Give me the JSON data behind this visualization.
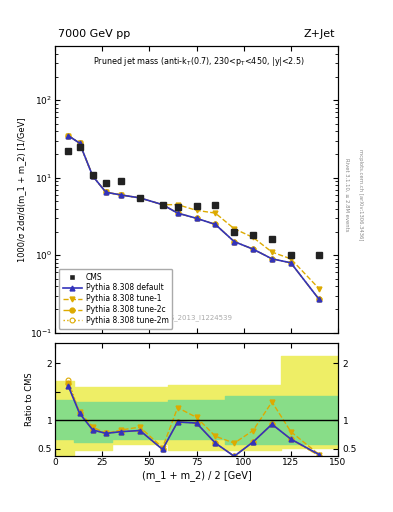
{
  "title_top": "7000 GeV pp",
  "title_right": "Z+Jet",
  "watermark": "CMS_2013_I1224539",
  "rivet_text": "Rivet 3.1.10, ≥ 2.8M events",
  "mcplots_text": "mcplots.cern.ch [arXiv:1306.3436]",
  "ylabel_main": "1000/σ 2dσ/d(m_1 + m_2) [1/GeV]",
  "ylabel_ratio": "Ratio to CMS",
  "xlabel": "(m_1 + m_2) / 2 [GeV]",
  "xlim": [
    0,
    150
  ],
  "ylim_main": [
    0.1,
    500
  ],
  "ylim_ratio": [
    0.38,
    2.35
  ],
  "cms_x": [
    7,
    13,
    20,
    27,
    35,
    45,
    57,
    65,
    75,
    85,
    95,
    105,
    115,
    125,
    140
  ],
  "cms_y": [
    22,
    25,
    11,
    8.5,
    9,
    5.5,
    4.5,
    4.2,
    4.3,
    4.5,
    2.0,
    1.8,
    1.6,
    1.0,
    1.0
  ],
  "pythia_default_x": [
    7,
    13,
    20,
    27,
    35,
    45,
    57,
    65,
    75,
    85,
    95,
    105,
    115,
    125,
    140
  ],
  "pythia_default_y": [
    35,
    28,
    10.5,
    6.5,
    6.0,
    5.5,
    4.5,
    3.5,
    3.0,
    2.5,
    1.5,
    1.2,
    0.9,
    0.8,
    0.27
  ],
  "pythia_tune1_x": [
    7,
    13,
    20,
    27,
    35,
    45,
    57,
    65,
    75,
    85,
    95,
    105,
    115,
    125,
    140
  ],
  "pythia_tune1_y": [
    35,
    28,
    10.5,
    6.5,
    6.0,
    5.5,
    4.5,
    4.5,
    3.8,
    3.5,
    2.2,
    1.7,
    1.1,
    0.9,
    0.37
  ],
  "pythia_tune2c_x": [
    7,
    13,
    20,
    27,
    35,
    45,
    57,
    65,
    75,
    85,
    95,
    105,
    115,
    125,
    140
  ],
  "pythia_tune2c_y": [
    35,
    28,
    10.5,
    6.5,
    6.0,
    5.5,
    4.5,
    3.5,
    3.0,
    2.5,
    1.5,
    1.2,
    0.9,
    0.8,
    0.27
  ],
  "pythia_tune2m_x": [
    7,
    13,
    20,
    27,
    35,
    45,
    57,
    65,
    75,
    85,
    95,
    105,
    115,
    125,
    140
  ],
  "pythia_tune2m_y": [
    35,
    28,
    10.5,
    6.5,
    6.0,
    5.5,
    4.5,
    3.5,
    3.0,
    2.5,
    1.5,
    1.2,
    0.9,
    0.8,
    0.27
  ],
  "ratio_default_x": [
    7,
    13,
    20,
    27,
    35,
    45,
    57,
    65,
    75,
    85,
    95,
    105,
    115,
    125,
    140
  ],
  "ratio_default_y": [
    1.6,
    1.12,
    0.83,
    0.77,
    0.8,
    0.82,
    0.49,
    0.97,
    0.95,
    0.6,
    0.37,
    0.62,
    0.93,
    0.67,
    0.4
  ],
  "ratio_tune1_x": [
    7,
    13,
    20,
    27,
    35,
    45,
    57,
    65,
    75,
    85,
    95,
    105,
    115,
    125,
    140
  ],
  "ratio_tune1_y": [
    1.6,
    1.15,
    0.88,
    0.77,
    0.83,
    0.88,
    0.52,
    1.22,
    1.05,
    0.72,
    0.6,
    0.82,
    1.32,
    0.8,
    0.4
  ],
  "ratio_tune2c_x": [
    7,
    13,
    20,
    27,
    35,
    45,
    57,
    65,
    75,
    85,
    95,
    105,
    115,
    125,
    140
  ],
  "ratio_tune2c_y": [
    1.65,
    1.13,
    0.83,
    0.77,
    0.8,
    0.82,
    0.49,
    0.97,
    0.95,
    0.6,
    0.37,
    0.62,
    0.93,
    0.67,
    0.38
  ],
  "ratio_tune2m_x": [
    7,
    13,
    20,
    27,
    35,
    45,
    57,
    65,
    75,
    85,
    95,
    105,
    115,
    125,
    140
  ],
  "ratio_tune2m_y": [
    1.7,
    1.13,
    0.83,
    0.77,
    0.8,
    0.82,
    0.49,
    0.97,
    0.95,
    0.6,
    0.37,
    0.62,
    0.93,
    0.67,
    0.38
  ],
  "green_band_x": [
    0,
    10,
    10,
    30,
    30,
    60,
    60,
    90,
    90,
    150
  ],
  "green_band_lower": [
    0.68,
    0.68,
    0.62,
    0.62,
    0.68,
    0.68,
    0.68,
    0.68,
    0.58,
    0.58
  ],
  "green_band_upper": [
    1.35,
    1.35,
    1.32,
    1.32,
    1.32,
    1.32,
    1.35,
    1.35,
    1.42,
    1.42
  ],
  "yellow_band_x": [
    0,
    10,
    10,
    30,
    30,
    60,
    60,
    90,
    90,
    120,
    120,
    150
  ],
  "yellow_band_lower": [
    0.32,
    0.32,
    0.48,
    0.48,
    0.58,
    0.58,
    0.48,
    0.48,
    0.48,
    0.48,
    0.52,
    0.52
  ],
  "yellow_band_upper": [
    1.68,
    1.68,
    1.58,
    1.58,
    1.58,
    1.58,
    1.62,
    1.62,
    1.62,
    1.62,
    2.12,
    2.12
  ],
  "color_default": "#3333bb",
  "color_tune1": "#ddaa00",
  "color_tune2c": "#ddaa00",
  "color_tune2m": "#ddaa00",
  "color_cms": "#222222",
  "color_green": "#88dd88",
  "color_yellow": "#eeee66"
}
